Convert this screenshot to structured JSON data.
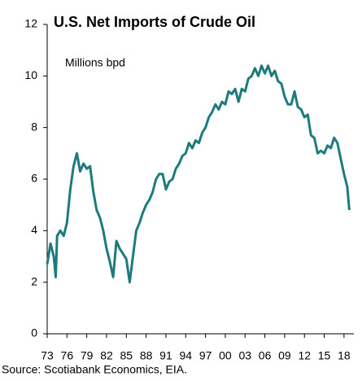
{
  "chart_data": {
    "type": "line",
    "title": "U.S. Net Imports of Crude Oil",
    "annotation": "Millions bpd",
    "source": "Source: Scotiabank Economics, EIA.",
    "series": [
      {
        "name": "U.S. Net Imports of Crude Oil",
        "color": "#1d7b7b",
        "x": [
          1973.0,
          1973.5,
          1974.0,
          1974.3,
          1974.5,
          1975.0,
          1975.5,
          1976.0,
          1976.5,
          1977.0,
          1977.5,
          1978.0,
          1978.5,
          1979.0,
          1979.5,
          1980.0,
          1980.5,
          1981.0,
          1981.5,
          1982.0,
          1982.5,
          1983.0,
          1983.5,
          1984.0,
          1984.5,
          1985.0,
          1985.5,
          1986.0,
          1986.5,
          1987.0,
          1987.5,
          1988.0,
          1988.5,
          1989.0,
          1989.5,
          1990.0,
          1990.5,
          1991.0,
          1991.5,
          1992.0,
          1992.5,
          1993.0,
          1993.5,
          1994.0,
          1994.5,
          1995.0,
          1995.5,
          1996.0,
          1996.5,
          1997.0,
          1997.5,
          1998.0,
          1998.5,
          1999.0,
          1999.5,
          2000.0,
          2000.5,
          2001.0,
          2001.5,
          2002.0,
          2002.5,
          2003.0,
          2003.5,
          2004.0,
          2004.5,
          2005.0,
          2005.5,
          2006.0,
          2006.5,
          2007.0,
          2007.5,
          2008.0,
          2008.5,
          2009.0,
          2009.5,
          2010.0,
          2010.5,
          2011.0,
          2011.5,
          2012.0,
          2012.5,
          2013.0,
          2013.5,
          2014.0,
          2014.5,
          2015.0,
          2015.5,
          2016.0,
          2016.5,
          2017.0,
          2017.5,
          2018.0,
          2018.5,
          2018.8
        ],
        "values": [
          2.7,
          3.5,
          3.0,
          2.2,
          3.8,
          4.0,
          3.8,
          4.3,
          5.6,
          6.5,
          7.0,
          6.3,
          6.6,
          6.4,
          6.5,
          5.5,
          4.8,
          4.5,
          4.0,
          3.3,
          2.8,
          2.2,
          3.6,
          3.3,
          3.1,
          2.9,
          2.0,
          3.0,
          4.0,
          4.3,
          4.7,
          5.0,
          5.2,
          5.5,
          6.0,
          6.2,
          6.2,
          5.6,
          5.9,
          6.0,
          6.4,
          6.6,
          6.9,
          7.0,
          7.4,
          7.2,
          7.5,
          7.4,
          7.8,
          8.0,
          8.4,
          8.6,
          8.9,
          8.7,
          9.0,
          8.9,
          9.4,
          9.3,
          9.5,
          9.0,
          9.5,
          9.4,
          9.9,
          10.0,
          10.3,
          10.0,
          10.4,
          10.1,
          10.4,
          10.0,
          10.2,
          9.8,
          9.7,
          9.2,
          8.9,
          8.9,
          9.4,
          8.8,
          8.7,
          8.4,
          8.5,
          7.7,
          7.6,
          7.0,
          7.1,
          7.0,
          7.3,
          7.2,
          7.6,
          7.4,
          6.8,
          6.2,
          5.7,
          4.8
        ]
      }
    ],
    "xlim": [
      1973,
      2019
    ],
    "xticks": [
      {
        "value": 1973,
        "label": "73"
      },
      {
        "value": 1976,
        "label": "76"
      },
      {
        "value": 1979,
        "label": "79"
      },
      {
        "value": 1982,
        "label": "82"
      },
      {
        "value": 1985,
        "label": "85"
      },
      {
        "value": 1988,
        "label": "88"
      },
      {
        "value": 1991,
        "label": "91"
      },
      {
        "value": 1994,
        "label": "94"
      },
      {
        "value": 1997,
        "label": "97"
      },
      {
        "value": 2000,
        "label": "00"
      },
      {
        "value": 2003,
        "label": "03"
      },
      {
        "value": 2006,
        "label": "06"
      },
      {
        "value": 2009,
        "label": "09"
      },
      {
        "value": 2012,
        "label": "12"
      },
      {
        "value": 2015,
        "label": "15"
      },
      {
        "value": 2018,
        "label": "18"
      }
    ],
    "ylim": [
      0,
      12
    ],
    "yticks": [
      0,
      2,
      4,
      6,
      8,
      10,
      12
    ],
    "grid": false
  }
}
